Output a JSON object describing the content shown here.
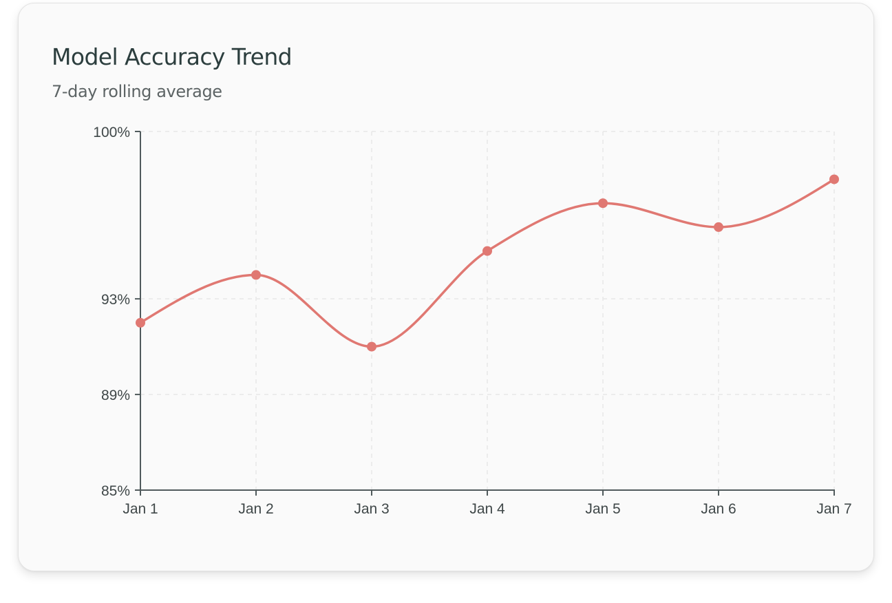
{
  "chart_data": {
    "type": "line",
    "title": "Model Accuracy Trend",
    "subtitle": "7-day rolling average",
    "categories": [
      "Jan 1",
      "Jan 2",
      "Jan 3",
      "Jan 4",
      "Jan 5",
      "Jan 6",
      "Jan 7"
    ],
    "values": [
      92,
      94,
      91,
      95,
      97,
      96,
      98
    ],
    "y_ticks": [
      {
        "value": 85,
        "label": "85%"
      },
      {
        "value": 89,
        "label": "89%"
      },
      {
        "value": 93,
        "label": "93%"
      },
      {
        "value": 100,
        "label": "100%"
      }
    ],
    "ylim": [
      85,
      100
    ],
    "xlabel": "",
    "ylabel": "",
    "grid": true,
    "line_color": "#e07872",
    "axis_color": "#505a5c",
    "grid_color": "#e8e8e8"
  }
}
